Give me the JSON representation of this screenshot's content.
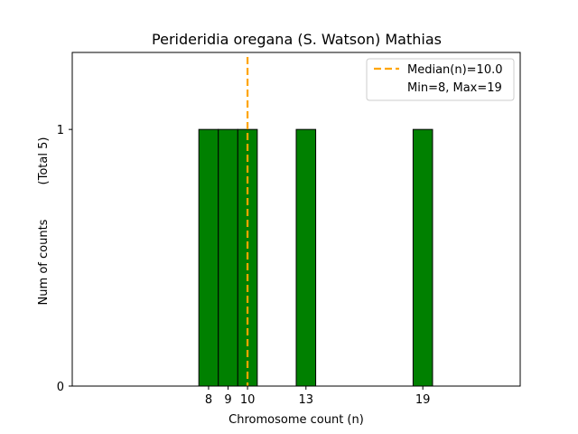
{
  "chart_data": {
    "type": "bar",
    "title": "Perideridia oregana (S. Watson) Mathias",
    "xlabel": "Chromosome count (n)",
    "ylabel": "Num of counts",
    "ylabel_total": "(Total 5)",
    "x_ticks": [
      8,
      9,
      10,
      13,
      19
    ],
    "y_ticks": [
      0,
      1
    ],
    "xlim": [
      1,
      24
    ],
    "ylim": [
      0,
      1.3
    ],
    "bin_width": 1,
    "bars": [
      {
        "x": 8,
        "value": 1
      },
      {
        "x": 9,
        "value": 1
      },
      {
        "x": 10,
        "value": 1
      },
      {
        "x": 13,
        "value": 1
      },
      {
        "x": 19,
        "value": 1
      }
    ],
    "median": 10.0,
    "legend": {
      "position": "top-right",
      "median_label": "Median(n)=10.0",
      "range_label": "Min=8, Max=19"
    },
    "colors": {
      "bar_fill": "#008000",
      "bar_edge": "#000000",
      "median_line": "#FFA500"
    },
    "grid": false
  }
}
